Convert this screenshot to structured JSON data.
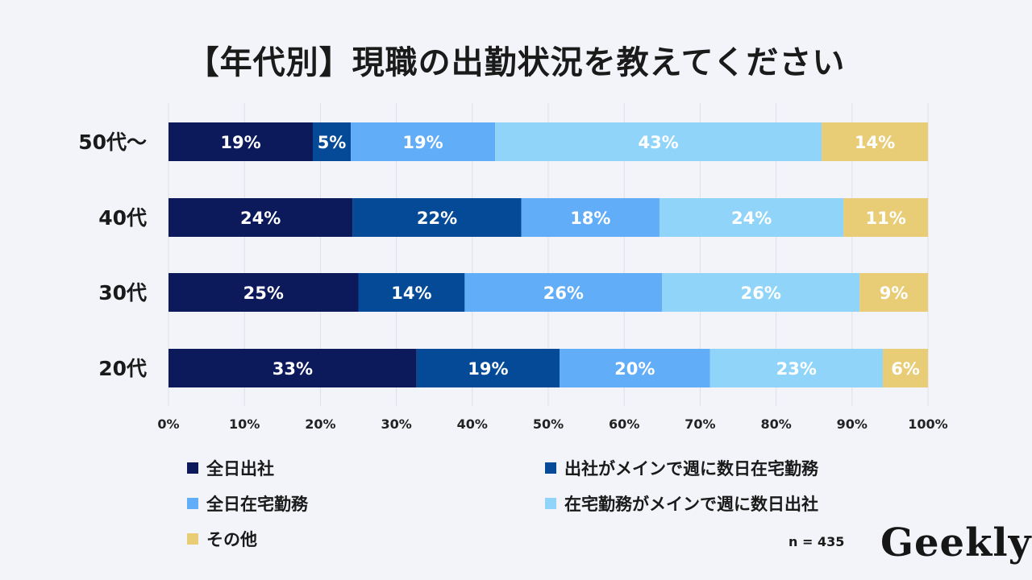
{
  "title": "【年代別】現職の出勤状況を教えてください",
  "sample_size": "n = 435",
  "logo_text": "Geekly",
  "chart_data": {
    "type": "bar",
    "orientation": "horizontal-stacked-100",
    "categories": [
      "50代〜",
      "40代",
      "30代",
      "20代"
    ],
    "xlim": [
      0,
      100
    ],
    "x_ticks": [
      "0%",
      "10%",
      "20%",
      "30%",
      "40%",
      "50%",
      "60%",
      "70%",
      "80%",
      "90%",
      "100%"
    ],
    "grid": true,
    "legend_position": "bottom",
    "series": [
      {
        "name": "全日出社",
        "color": "#0c1a5c",
        "values": [
          19,
          24,
          25,
          33
        ],
        "labels": [
          "19%",
          "24%",
          "25%",
          "33%"
        ]
      },
      {
        "name": "出社がメインで週に数日在宅勤務",
        "color": "#044a96",
        "values": [
          5,
          22,
          14,
          19
        ],
        "labels": [
          "5%",
          "22%",
          "14%",
          "19%"
        ]
      },
      {
        "name": "全日在宅勤務",
        "color": "#62adf7",
        "values": [
          19,
          18,
          26,
          20
        ],
        "labels": [
          "19%",
          "18%",
          "26%",
          "20%"
        ]
      },
      {
        "name": "在宅勤務がメインで週に数日出社",
        "color": "#90d5f9",
        "values": [
          43,
          24,
          26,
          23
        ],
        "labels": [
          "43%",
          "24%",
          "26%",
          "23%"
        ]
      },
      {
        "name": "その他",
        "color": "#e8cd76",
        "values": [
          14,
          11,
          9,
          6
        ],
        "labels": [
          "14%",
          "11%",
          "9%",
          "6%"
        ]
      }
    ]
  }
}
